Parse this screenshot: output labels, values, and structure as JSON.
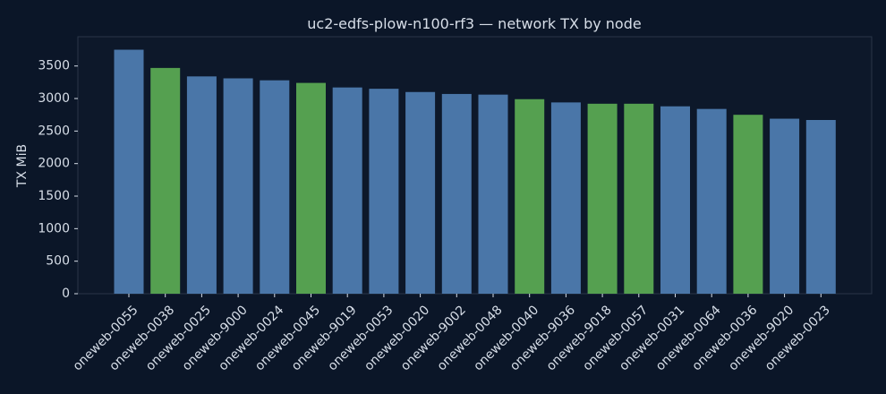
{
  "chart_data": {
    "type": "bar",
    "title": "uc2-edfs-plow-n100-rf3 — network TX by node",
    "xlabel": "",
    "ylabel": "TX MiB",
    "ylim": [
      0,
      3950
    ],
    "yticks": [
      0,
      500,
      1000,
      1500,
      2000,
      2500,
      3000,
      3500
    ],
    "grid": false,
    "categories": [
      "oneweb-0055",
      "oneweb-0038",
      "oneweb-0025",
      "oneweb-9000",
      "oneweb-0024",
      "oneweb-0045",
      "oneweb-9019",
      "oneweb-0053",
      "oneweb-0020",
      "oneweb-9002",
      "oneweb-0048",
      "oneweb-0040",
      "oneweb-9036",
      "oneweb-9018",
      "oneweb-0057",
      "oneweb-0031",
      "oneweb-0064",
      "oneweb-0036",
      "oneweb-9020",
      "oneweb-0023"
    ],
    "values": [
      3750,
      3470,
      3340,
      3310,
      3280,
      3240,
      3170,
      3150,
      3100,
      3070,
      3060,
      2990,
      2940,
      2920,
      2920,
      2880,
      2840,
      2750,
      2690,
      2670
    ],
    "bar_colors": [
      "#4a76a8",
      "#55a050",
      "#4a76a8",
      "#4a76a8",
      "#4a76a8",
      "#55a050",
      "#4a76a8",
      "#4a76a8",
      "#4a76a8",
      "#4a76a8",
      "#4a76a8",
      "#55a050",
      "#4a76a8",
      "#55a050",
      "#55a050",
      "#4a76a8",
      "#4a76a8",
      "#55a050",
      "#4a76a8",
      "#4a76a8"
    ],
    "colors": {
      "background": "#0b1628",
      "plot_background": "#0d182a",
      "text": "#d7dee8"
    }
  }
}
